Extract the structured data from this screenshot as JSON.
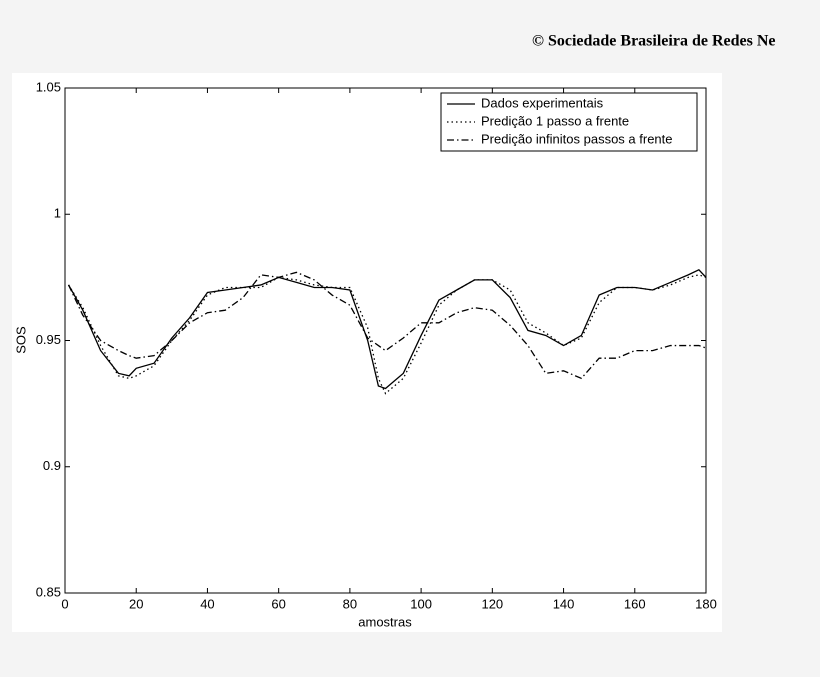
{
  "chart_data": {
    "type": "line",
    "note": "© Sociedade Brasileira de Redes Ne",
    "xlabel": "amostras",
    "ylabel": "SOS",
    "xlim": [
      0,
      180
    ],
    "ylim": [
      0.85,
      1.05
    ],
    "xticks": [
      0,
      20,
      40,
      60,
      80,
      100,
      120,
      140,
      160,
      180
    ],
    "yticks": [
      0.85,
      0.9,
      0.95,
      1,
      1.05
    ],
    "legend_position": "upper right",
    "x": [
      1,
      5,
      10,
      15,
      18,
      20,
      25,
      30,
      35,
      40,
      45,
      50,
      55,
      60,
      65,
      70,
      75,
      80,
      85,
      88,
      90,
      95,
      100,
      105,
      110,
      115,
      120,
      125,
      130,
      135,
      140,
      145,
      150,
      155,
      160,
      165,
      170,
      175,
      178,
      180
    ],
    "series": [
      {
        "name": "Dados experimentais",
        "color": "#000000",
        "dash": "solid",
        "values": [
          0.972,
          0.962,
          0.946,
          0.937,
          0.936,
          0.939,
          0.941,
          0.951,
          0.959,
          0.969,
          0.97,
          0.971,
          0.972,
          0.975,
          0.973,
          0.971,
          0.971,
          0.97,
          0.95,
          0.932,
          0.931,
          0.937,
          0.952,
          0.966,
          0.97,
          0.974,
          0.974,
          0.967,
          0.954,
          0.952,
          0.948,
          0.952,
          0.968,
          0.971,
          0.971,
          0.97,
          0.973,
          0.976,
          0.978,
          0.975
        ]
      },
      {
        "name": "Predição 1 passo a frente",
        "color": "#000000",
        "dash": "dotted",
        "values": [
          0.972,
          0.963,
          0.948,
          0.936,
          0.935,
          0.936,
          0.94,
          0.95,
          0.958,
          0.968,
          0.971,
          0.971,
          0.971,
          0.975,
          0.974,
          0.972,
          0.971,
          0.971,
          0.955,
          0.935,
          0.929,
          0.935,
          0.949,
          0.964,
          0.97,
          0.974,
          0.974,
          0.97,
          0.957,
          0.953,
          0.948,
          0.951,
          0.965,
          0.971,
          0.971,
          0.97,
          0.972,
          0.975,
          0.976,
          0.975
        ]
      },
      {
        "name": "Predição infinitos passos a frente",
        "color": "#000000",
        "dash": "dashdot",
        "values": [
          0.972,
          0.96,
          0.95,
          0.946,
          0.944,
          0.943,
          0.944,
          0.95,
          0.957,
          0.961,
          0.962,
          0.967,
          0.976,
          0.975,
          0.977,
          0.974,
          0.968,
          0.964,
          0.951,
          0.948,
          0.946,
          0.951,
          0.957,
          0.957,
          0.961,
          0.963,
          0.962,
          0.956,
          0.948,
          0.937,
          0.938,
          0.935,
          0.943,
          0.943,
          0.946,
          0.946,
          0.948,
          0.948,
          0.948,
          0.947
        ]
      }
    ]
  }
}
